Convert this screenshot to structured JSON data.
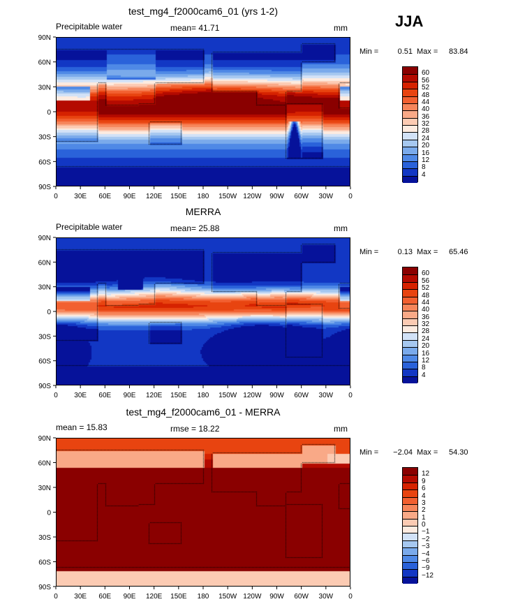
{
  "season": "JJA",
  "panels": [
    {
      "title": "test_mg4_f2000cam6_01 (yrs 1-2)",
      "left_label": "Precipitable water",
      "center_label": "mean=  41.71",
      "right_label": "mm",
      "min_label": "Min =",
      "min_value": "0.51",
      "max_label": "Max =",
      "max_value": "83.84",
      "levels": [
        "60",
        "56",
        "52",
        "48",
        "44",
        "40",
        "36",
        "32",
        "28",
        "24",
        "20",
        "16",
        "12",
        "8",
        "4"
      ],
      "colors": [
        "#8a0000",
        "#b40a00",
        "#d62200",
        "#e84410",
        "#f26030",
        "#f6855a",
        "#f9a987",
        "#fccbb3",
        "#fdebe0",
        "#d2e2f7",
        "#a6c8f0",
        "#7aaaeb",
        "#4f89e6",
        "#2a62da",
        "#1237c4",
        "#06129a"
      ],
      "field": "model"
    },
    {
      "title": "MERRA",
      "left_label": "Precipitable water",
      "center_label": "mean=  25.88",
      "right_label": "mm",
      "min_label": "Min =",
      "min_value": "0.13",
      "max_label": "Max =",
      "max_value": "65.46",
      "levels": [
        "60",
        "56",
        "52",
        "48",
        "44",
        "40",
        "36",
        "32",
        "28",
        "24",
        "20",
        "16",
        "12",
        "8",
        "4"
      ],
      "colors": [
        "#8a0000",
        "#b40a00",
        "#d62200",
        "#e84410",
        "#f26030",
        "#f6855a",
        "#f9a987",
        "#fccbb3",
        "#fdebe0",
        "#d2e2f7",
        "#a6c8f0",
        "#7aaaeb",
        "#4f89e6",
        "#2a62da",
        "#1237c4",
        "#06129a"
      ],
      "field": "obs"
    },
    {
      "title": "test_mg4_f2000cam6_01 - MERRA",
      "left_label": "mean =   15.83",
      "center_label": "rmse =   18.22",
      "right_label": "mm",
      "min_label": "Min =",
      "min_value": "−2.04",
      "max_label": "Max =",
      "max_value": "54.30",
      "levels": [
        "12",
        "9",
        "6",
        "4",
        "3",
        "2",
        "1",
        "0",
        "−1",
        "−2",
        "−3",
        "−4",
        "−6",
        "−9",
        "−12"
      ],
      "colors": [
        "#8a0000",
        "#b40a00",
        "#d62200",
        "#e84410",
        "#f26030",
        "#f6855a",
        "#f9a987",
        "#fccbb3",
        "#fdebe0",
        "#d2e2f7",
        "#a6c8f0",
        "#7aaaeb",
        "#4f89e6",
        "#2a62da",
        "#1237c4",
        "#06129a"
      ],
      "field": "diff"
    }
  ],
  "chart_data": {
    "type": "heatmap",
    "x_ticks": [
      "0",
      "30E",
      "60E",
      "90E",
      "120E",
      "150E",
      "180",
      "150W",
      "120W",
      "90W",
      "60W",
      "30W",
      "0"
    ],
    "y_ticks": [
      "90N",
      "60N",
      "30N",
      "0",
      "30S",
      "60S",
      "90S"
    ],
    "xlim": [
      0,
      360
    ],
    "ylim": [
      -90,
      90
    ]
  }
}
